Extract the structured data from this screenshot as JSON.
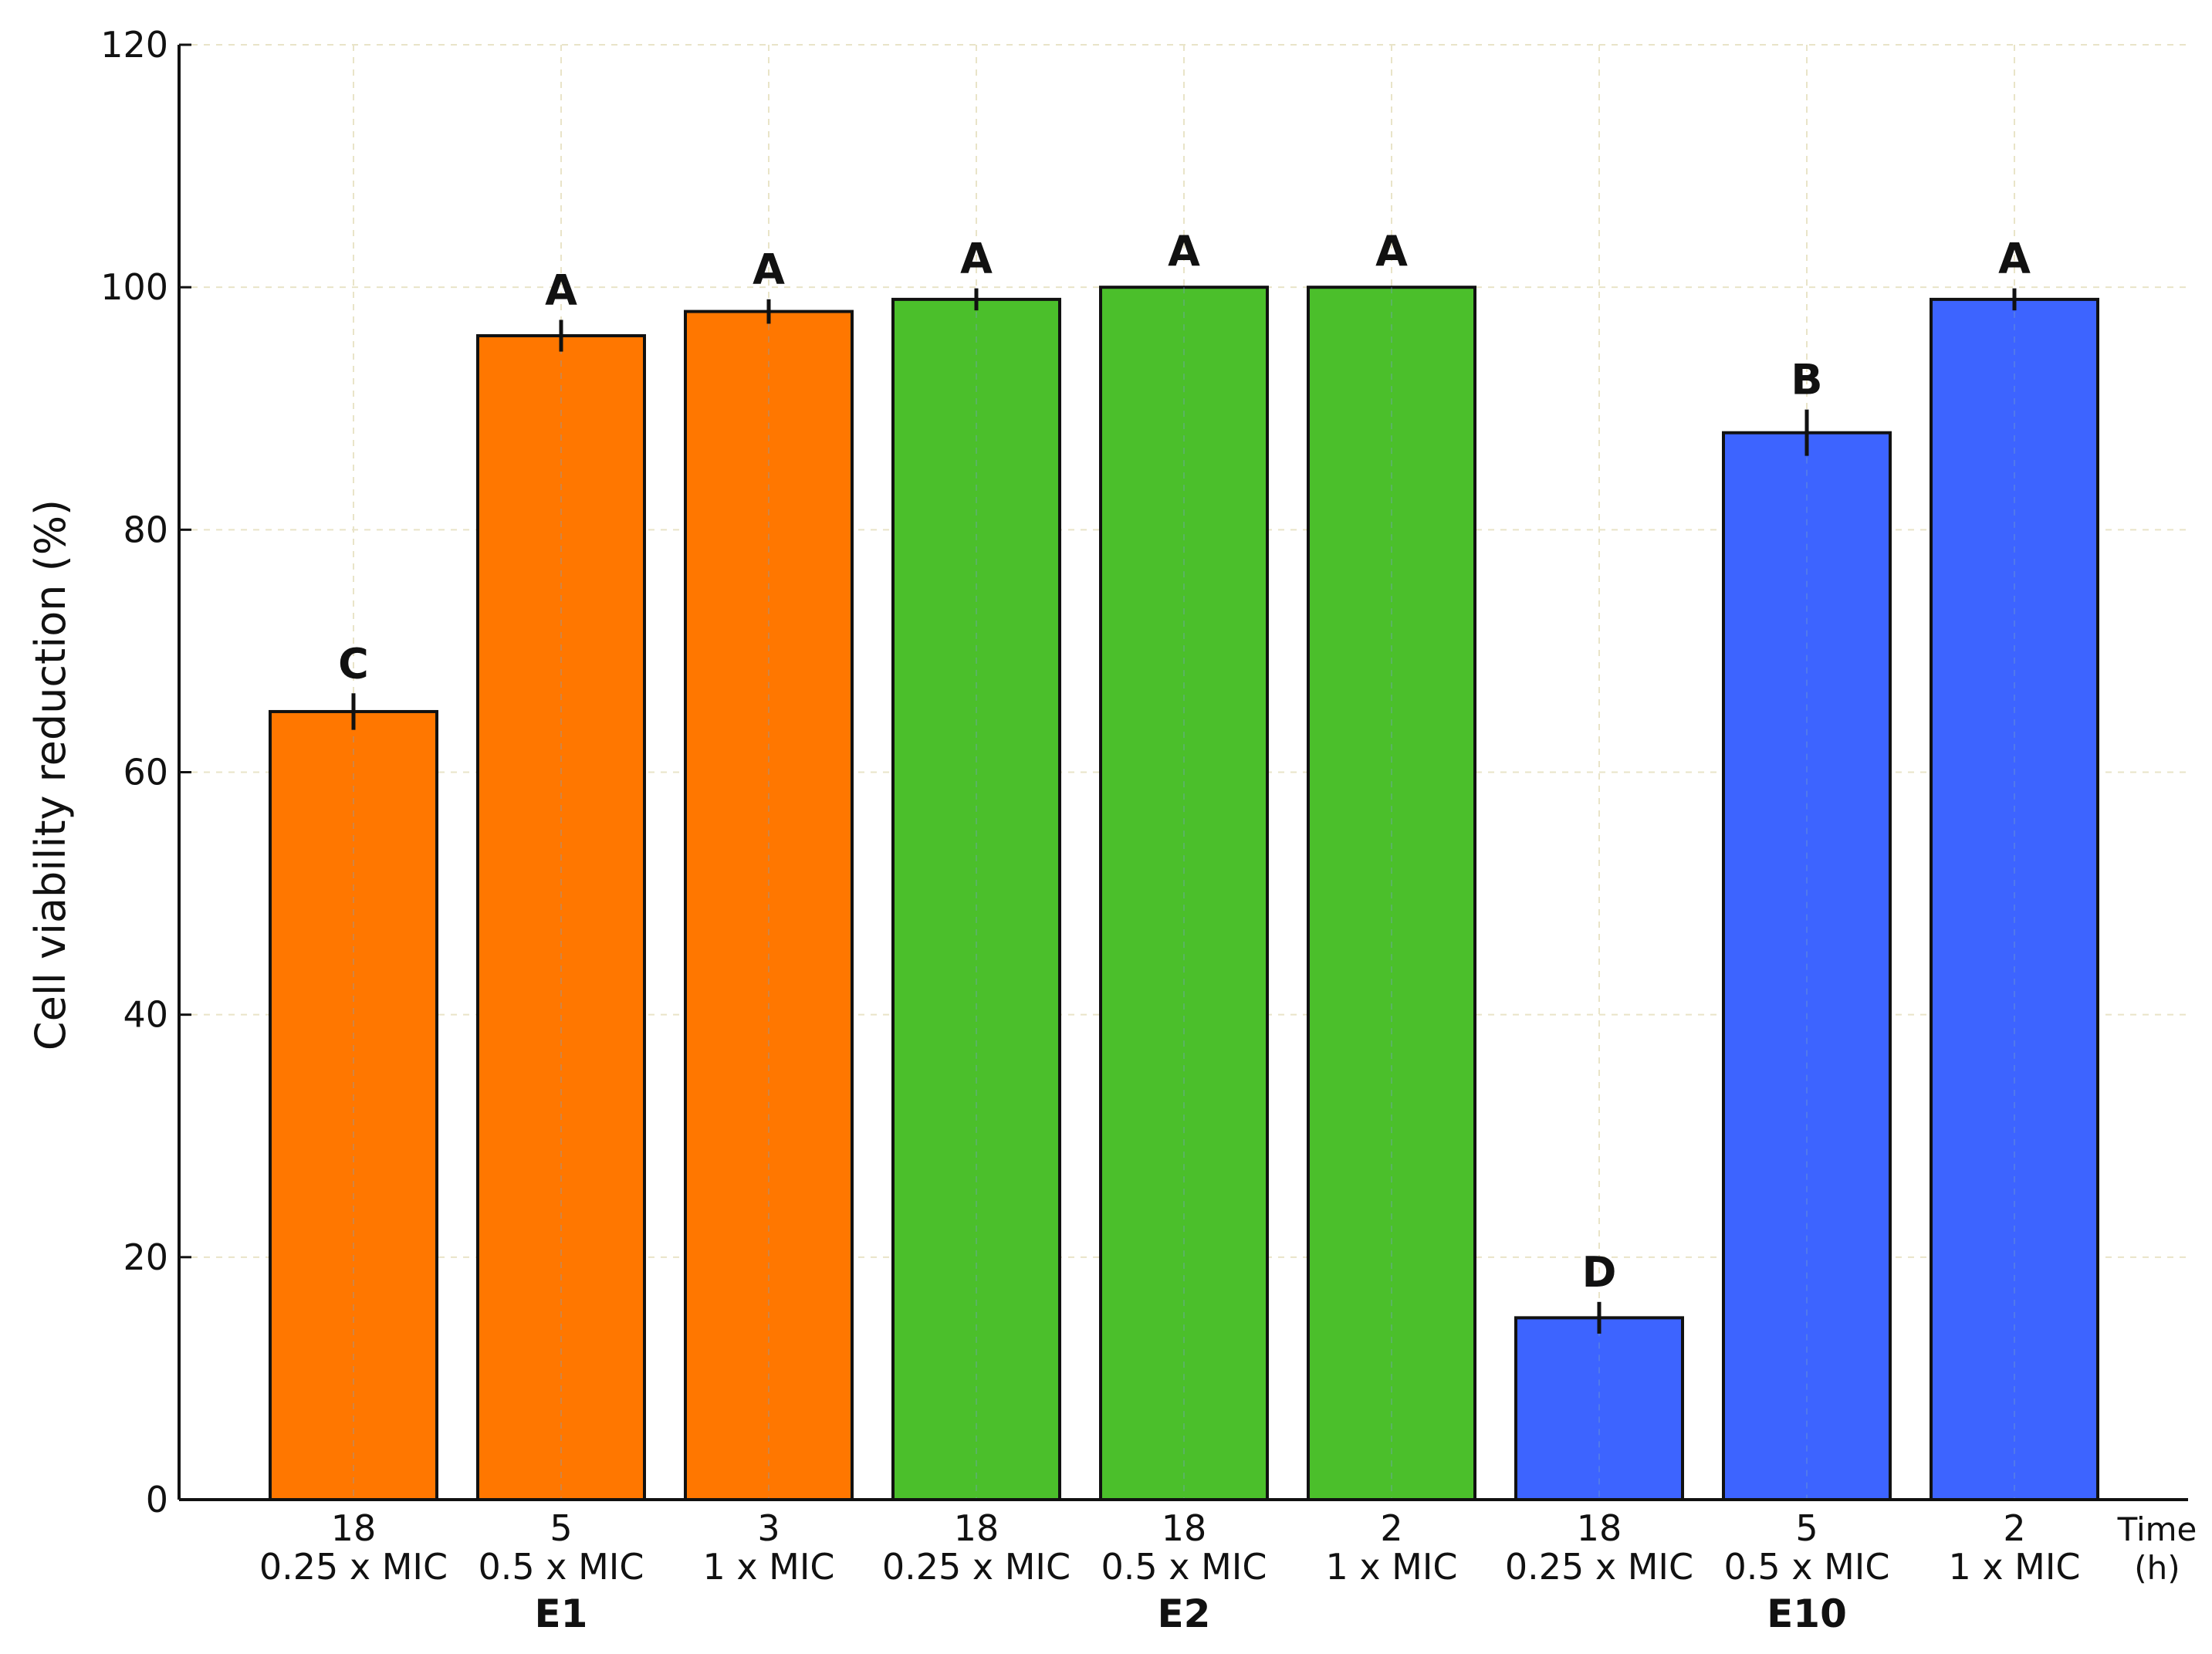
{
  "chart_data": {
    "type": "bar",
    "title": "",
    "ylabel": "Cell viability reduction (%)",
    "xlabel": "",
    "ylim": [
      0,
      120
    ],
    "yticks": [
      "0",
      "20",
      "40",
      "60",
      "80",
      "100",
      "120"
    ],
    "grid": true,
    "time_label": [
      "Time",
      "(h)"
    ],
    "bars": [
      {
        "time": "18",
        "dose": "0.25 x MIC",
        "group": "E1",
        "value": 65,
        "error": 1.0,
        "sig": "C",
        "color": "#ff7700"
      },
      {
        "time": "5",
        "dose": "0.5 x MIC",
        "group": "E1",
        "value": 96,
        "error": 0.8,
        "sig": "A",
        "color": "#ff7700"
      },
      {
        "time": "3",
        "dose": "1 x MIC",
        "group": "E1",
        "value": 98,
        "error": 0.5,
        "sig": "A",
        "color": "#ff7700"
      },
      {
        "time": "18",
        "dose": "0.25 x MIC",
        "group": "E2",
        "value": 99,
        "error": 0.4,
        "sig": "A",
        "color": "#4bbf2b"
      },
      {
        "time": "18",
        "dose": "0.5 x MIC",
        "group": "E2",
        "value": 100,
        "error": 0,
        "sig": "A",
        "color": "#4bbf2b"
      },
      {
        "time": "2",
        "dose": "1 x MIC",
        "group": "E2",
        "value": 100,
        "error": 0,
        "sig": "A",
        "color": "#4bbf2b"
      },
      {
        "time": "18",
        "dose": "0.25 x MIC",
        "group": "E10",
        "value": 15,
        "error": 0.8,
        "sig": "D",
        "color": "#3d64ff"
      },
      {
        "time": "5",
        "dose": "0.5 x MIC",
        "group": "E10",
        "value": 88,
        "error": 1.4,
        "sig": "B",
        "color": "#3d64ff"
      },
      {
        "time": "2",
        "dose": "1 x MIC",
        "group": "E10",
        "value": 99,
        "error": 0.4,
        "sig": "A",
        "color": "#3d64ff"
      }
    ],
    "groups": [
      {
        "name": "E1",
        "first": 0,
        "last": 2
      },
      {
        "name": "E2",
        "first": 3,
        "last": 5
      },
      {
        "name": "E10",
        "first": 6,
        "last": 8
      }
    ]
  }
}
